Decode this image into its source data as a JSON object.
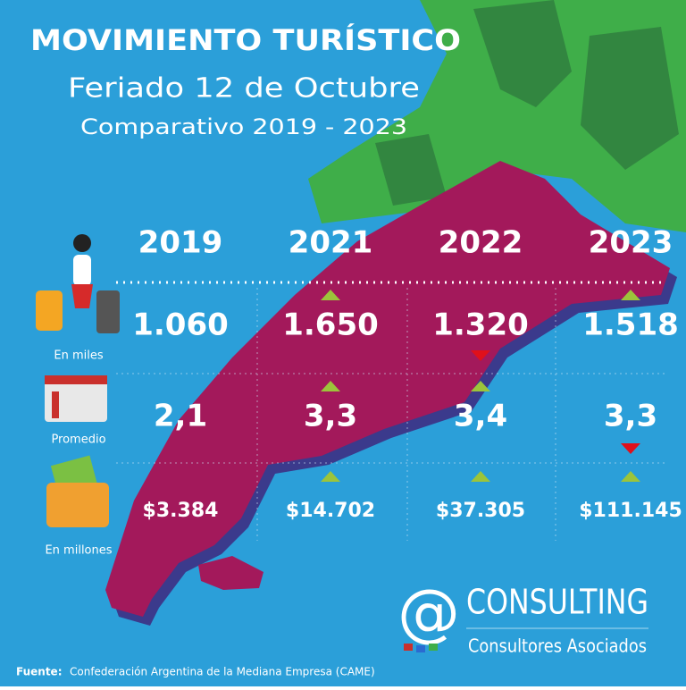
{
  "header": {
    "title": "MOVIMIENTO TURÍSTICO",
    "subtitle": "Feriado 12 de Octubre",
    "period": "Comparativo 2019 - 2023"
  },
  "table": {
    "columns": [
      "2019",
      "2021",
      "2022",
      "2023"
    ],
    "rows": [
      {
        "label": "En miles",
        "values": [
          "1.060",
          "1.650",
          "1.320",
          "1.518"
        ],
        "trends": [
          null,
          "up",
          "down",
          "up"
        ]
      },
      {
        "label": "Promedio",
        "values": [
          "2,1",
          "3,3",
          "3,4",
          "3,3"
        ],
        "trends": [
          null,
          "up",
          "up",
          "down"
        ]
      },
      {
        "label": "En millones",
        "values": [
          "$3.384",
          "$14.702",
          "$37.305",
          "$111.145"
        ],
        "trends": [
          null,
          "up",
          "up",
          "up"
        ]
      }
    ]
  },
  "logo": {
    "symbol": "@",
    "name": "CONSULTING",
    "tagline": "Consultores Asociados"
  },
  "footer": {
    "label": "Fuente:",
    "source": "Confederación Argentina de la Mediana Empresa (CAME)"
  }
}
